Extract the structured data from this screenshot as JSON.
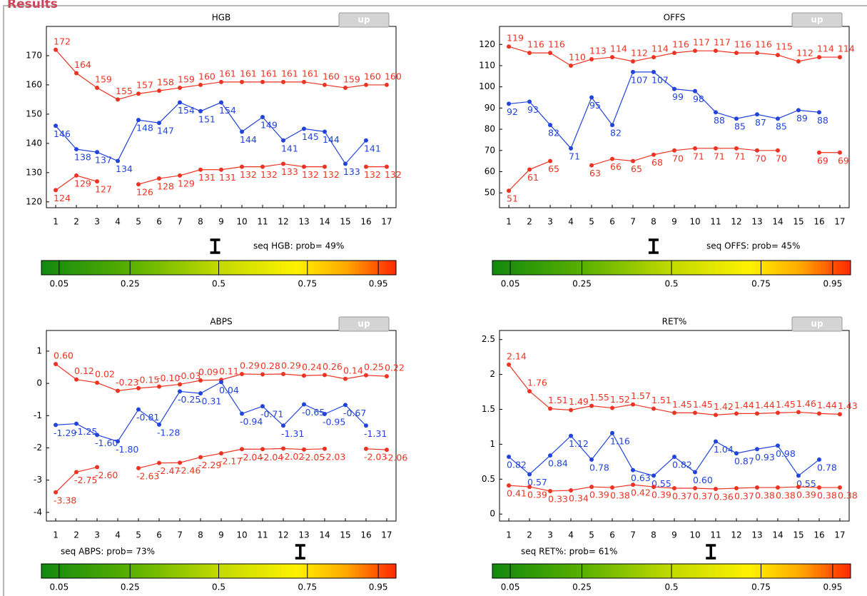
{
  "header": "Results",
  "chart_data": [
    {
      "type": "line",
      "title": "HGB",
      "button": "up",
      "x": [
        1,
        2,
        3,
        4,
        5,
        6,
        7,
        8,
        9,
        10,
        11,
        12,
        13,
        14,
        15,
        16,
        17
      ],
      "xlim": [
        0.55,
        17.45
      ],
      "xticks": [
        1,
        2,
        3,
        4,
        5,
        6,
        7,
        8,
        9,
        10,
        11,
        12,
        13,
        14,
        15,
        16,
        17
      ],
      "ylim": [
        118,
        180
      ],
      "yticks": [
        120,
        130,
        140,
        150,
        160,
        170
      ],
      "series": [
        {
          "color": "#ee3322",
          "values": [
            172,
            164,
            159,
            155,
            157,
            158,
            159,
            160,
            161,
            161,
            161,
            161,
            161,
            160,
            159,
            160,
            160
          ]
        },
        {
          "color": "#2244dd",
          "values": [
            146,
            138,
            137,
            134,
            148,
            147,
            154,
            151,
            154,
            144,
            149,
            141,
            145,
            144,
            133,
            141,
            null
          ]
        },
        {
          "color": "#ee3322",
          "values": [
            124,
            129,
            127,
            null,
            126,
            128,
            129,
            131,
            131,
            132,
            132,
            133,
            132,
            132,
            null,
            132,
            132
          ]
        }
      ],
      "prob": 0.49,
      "prob_label": "seq HGB: prob= 49%",
      "colorbar": {
        "xlim": [
          0,
          1
        ],
        "xticks": [
          0.05,
          0.25,
          0.5,
          0.75,
          0.95
        ]
      }
    },
    {
      "type": "line",
      "title": "OFFS",
      "button": "up",
      "x": [
        1,
        2,
        3,
        4,
        5,
        6,
        7,
        8,
        9,
        10,
        11,
        12,
        13,
        14,
        15,
        16,
        17
      ],
      "xlim": [
        0.55,
        17.45
      ],
      "xticks": [
        1,
        2,
        3,
        4,
        5,
        6,
        7,
        8,
        9,
        10,
        11,
        12,
        13,
        14,
        15,
        16,
        17
      ],
      "ylim": [
        43,
        128.5
      ],
      "yticks": [
        50,
        60,
        70,
        80,
        90,
        100,
        110,
        120
      ],
      "series": [
        {
          "color": "#ee3322",
          "values": [
            119,
            116,
            116,
            110,
            113,
            114,
            112,
            114,
            116,
            117,
            117,
            116,
            116,
            115,
            112,
            114,
            114
          ]
        },
        {
          "color": "#2244dd",
          "values": [
            92,
            93,
            82,
            71,
            95,
            82,
            107,
            107,
            99,
            98,
            88,
            85,
            87,
            85,
            89,
            88,
            null
          ]
        },
        {
          "color": "#ee3322",
          "values": [
            51,
            61,
            65,
            null,
            63,
            66,
            65,
            68,
            70,
            71,
            71,
            71,
            70,
            70,
            null,
            69,
            69
          ]
        }
      ],
      "prob": 0.45,
      "prob_label": "seq OFFS: prob= 45%",
      "colorbar": {
        "xlim": [
          0,
          1
        ],
        "xticks": [
          0.05,
          0.25,
          0.5,
          0.75,
          0.95
        ]
      }
    },
    {
      "type": "line",
      "title": "ABPS",
      "button": "up",
      "x": [
        1,
        2,
        3,
        4,
        5,
        6,
        7,
        8,
        9,
        10,
        11,
        12,
        13,
        14,
        15,
        16,
        17
      ],
      "xlim": [
        0.55,
        17.45
      ],
      "xticks": [
        1,
        2,
        3,
        4,
        5,
        6,
        7,
        8,
        9,
        10,
        11,
        12,
        13,
        14,
        15,
        16,
        17
      ],
      "ylim": [
        -4.27,
        1.64
      ],
      "yticks": [
        -4,
        -3,
        -2,
        -1,
        0,
        1
      ],
      "series": [
        {
          "color": "#ee3322",
          "values": [
            0.6,
            0.12,
            0.02,
            -0.23,
            -0.15,
            -0.1,
            -0.03,
            0.09,
            0.11,
            0.29,
            0.28,
            0.29,
            0.24,
            0.26,
            0.14,
            0.25,
            0.22
          ],
          "value_labels": [
            "0.60",
            "0.12",
            "0.02",
            "-0.23",
            "-0.15",
            "-0.10",
            "-0.03",
            "0.09",
            "0.11",
            "0.29",
            "0.28",
            "0.29",
            "0.24",
            "0.26",
            "0.14",
            "0.25",
            "0.22"
          ]
        },
        {
          "color": "#2244dd",
          "values": [
            -1.29,
            -1.25,
            -1.6,
            -1.8,
            -0.81,
            -1.28,
            -0.25,
            -0.31,
            0.04,
            -0.94,
            -0.71,
            -1.31,
            -0.65,
            -0.95,
            -0.67,
            -1.31,
            null
          ],
          "value_labels": [
            "-1.29",
            "-1.25",
            "-1.60",
            "-1.80",
            "-0.81",
            "-1.28",
            "-0.25",
            "-0.31",
            "0.04",
            "-0.94",
            "-0.71",
            "-1.31",
            "-0.65",
            "-0.95",
            "-0.67",
            "-1.31",
            null
          ]
        },
        {
          "color": "#ee3322",
          "values": [
            -3.38,
            -2.75,
            -2.6,
            null,
            -2.63,
            -2.47,
            -2.46,
            -2.29,
            -2.17,
            -2.04,
            -2.04,
            -2.02,
            -2.05,
            -2.03,
            null,
            -2.03,
            -2.06
          ],
          "value_labels": [
            "-3.38",
            "-2.75",
            "-2.60",
            null,
            "-2.63",
            "-2.47",
            "-2.46",
            "-2.29",
            "-2.17",
            "-2.04",
            "-2.04",
            "-2.02",
            "-2.05",
            "-2.03",
            null,
            "-2.03",
            "-2.06"
          ]
        }
      ],
      "prob": 0.73,
      "prob_label": "seq ABPS: prob= 73%",
      "colorbar": {
        "xlim": [
          0,
          1
        ],
        "xticks": [
          0.05,
          0.25,
          0.5,
          0.75,
          0.95
        ]
      }
    },
    {
      "type": "line",
      "title": "RET%",
      "button": "up",
      "x": [
        1,
        2,
        3,
        4,
        5,
        6,
        7,
        8,
        9,
        10,
        11,
        12,
        13,
        14,
        15,
        16,
        17
      ],
      "xlim": [
        0.55,
        17.45
      ],
      "xticks": [
        1,
        2,
        3,
        4,
        5,
        6,
        7,
        8,
        9,
        10,
        11,
        12,
        13,
        14,
        15,
        16,
        17
      ],
      "ylim": [
        -0.1,
        2.63
      ],
      "yticks": [
        0,
        0.5,
        1,
        1.5,
        2,
        2.5
      ],
      "series": [
        {
          "color": "#ee3322",
          "values": [
            2.14,
            1.76,
            1.51,
            1.49,
            1.55,
            1.52,
            1.57,
            1.51,
            1.45,
            1.45,
            1.42,
            1.44,
            1.44,
            1.45,
            1.46,
            1.44,
            1.43
          ]
        },
        {
          "color": "#2244dd",
          "values": [
            0.82,
            0.57,
            0.84,
            1.12,
            0.78,
            1.16,
            0.63,
            0.55,
            0.82,
            0.6,
            1.04,
            0.87,
            0.93,
            0.98,
            0.55,
            0.78,
            null
          ],
          "value_labels": [
            "0.82",
            "0.57",
            "0.84",
            "1.12",
            "0.78",
            "1.16",
            "0.63",
            "0.55",
            "0.82",
            "0.60",
            "1.04",
            "0.87",
            "0.93",
            "0.98",
            "0.55",
            "0.78",
            null
          ]
        },
        {
          "color": "#ee3322",
          "values": [
            0.41,
            0.39,
            0.33,
            0.34,
            0.39,
            0.38,
            0.42,
            0.39,
            0.37,
            0.37,
            0.36,
            0.37,
            0.38,
            0.38,
            0.39,
            0.38,
            0.38
          ]
        }
      ],
      "prob": 0.61,
      "prob_label": "seq RET%: prob= 61%",
      "colorbar": {
        "xlim": [
          0,
          1
        ],
        "xticks": [
          0.05,
          0.25,
          0.5,
          0.75,
          0.95
        ]
      }
    }
  ]
}
